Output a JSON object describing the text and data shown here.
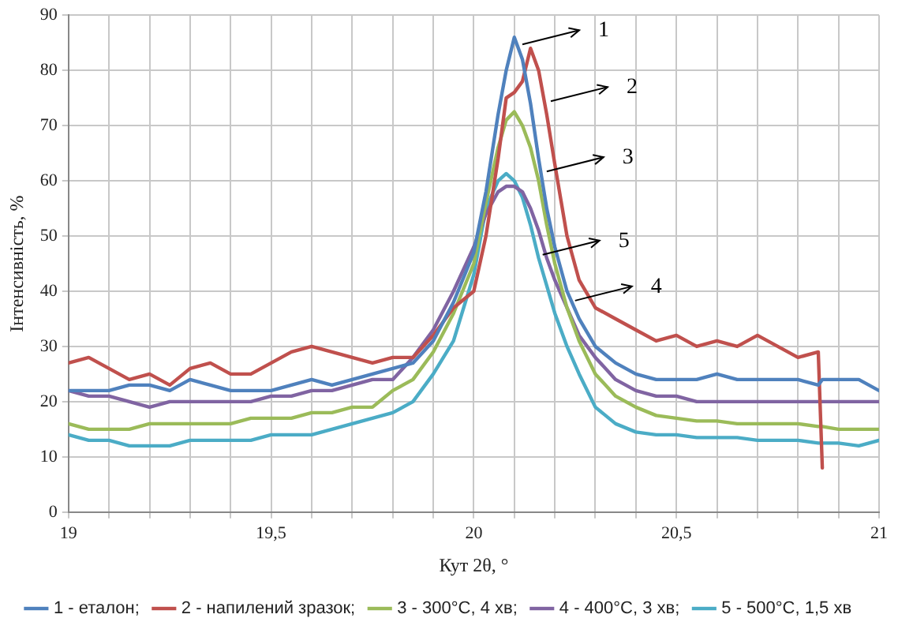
{
  "chart_data": {
    "type": "line",
    "xlabel": "Кут 2θ, °",
    "ylabel": "Інтенсивність, %",
    "x": [
      19,
      19.05,
      19.1,
      19.15,
      19.2,
      19.25,
      19.3,
      19.35,
      19.4,
      19.45,
      19.5,
      19.55,
      19.6,
      19.65,
      19.7,
      19.75,
      19.8,
      19.85,
      19.9,
      19.95,
      20,
      20.03,
      20.06,
      20.08,
      20.1,
      20.12,
      20.14,
      20.16,
      20.18,
      20.2,
      20.23,
      20.26,
      20.3,
      20.35,
      20.4,
      20.45,
      20.5,
      20.55,
      20.6,
      20.65,
      20.7,
      20.75,
      20.8,
      20.85,
      20.86,
      20.9,
      20.95,
      21
    ],
    "series": [
      {
        "name": "1 - еталон;",
        "color": "#4f81bd",
        "values": [
          22,
          22,
          22,
          23,
          23,
          22,
          24,
          23,
          22,
          22,
          22,
          23,
          24,
          23,
          24,
          25,
          26,
          27,
          31,
          38,
          47,
          58,
          72,
          80,
          86,
          82,
          74,
          64,
          55,
          48,
          40,
          35,
          30,
          27,
          25,
          24,
          24,
          24,
          25,
          24,
          24,
          24,
          24,
          23,
          24,
          24,
          24,
          22
        ]
      },
      {
        "name": "2 - напилений зразок;",
        "color": "#c0504d",
        "values": [
          27,
          28,
          26,
          24,
          25,
          23,
          26,
          27,
          25,
          25,
          27,
          29,
          30,
          29,
          28,
          27,
          28,
          28,
          32,
          37,
          40,
          50,
          64,
          75,
          76,
          78,
          84,
          80,
          72,
          63,
          50,
          42,
          37,
          35,
          33,
          31,
          32,
          30,
          31,
          30,
          32,
          30,
          28,
          29,
          8,
          null,
          null,
          null
        ]
      },
      {
        "name": "3 - 300°C, 4 хв;",
        "color": "#9bbb59",
        "values": [
          16,
          15,
          15,
          15,
          16,
          16,
          16,
          16,
          16,
          17,
          17,
          17,
          18,
          18,
          19,
          19,
          22,
          24,
          29,
          36,
          45,
          56,
          66,
          71,
          72.5,
          70,
          66,
          60,
          52,
          45,
          37,
          31,
          25,
          21,
          19,
          17.5,
          17,
          16.5,
          16.5,
          16,
          16,
          16,
          16,
          15.5,
          15.5,
          15,
          15,
          15
        ]
      },
      {
        "name": "4 - 400°C, 3 хв;",
        "color": "#8064a2",
        "values": [
          22,
          21,
          21,
          20,
          19,
          20,
          20,
          20,
          20,
          20,
          21,
          21,
          22,
          22,
          23,
          24,
          24,
          28,
          33,
          40,
          48,
          54,
          58,
          59,
          59,
          58,
          55,
          51,
          46,
          42,
          37,
          32,
          28,
          24,
          22,
          21,
          21,
          20,
          20,
          20,
          20,
          20,
          20,
          20,
          20,
          20,
          20,
          20
        ]
      },
      {
        "name": "5 - 500°C, 1,5 хв",
        "color": "#4bacc6",
        "values": [
          14,
          13,
          13,
          12,
          12,
          12,
          13,
          13,
          13,
          13,
          14,
          14,
          14,
          15,
          16,
          17,
          18,
          20,
          25,
          31,
          43,
          55,
          60,
          61.3,
          60,
          57,
          52,
          46,
          41,
          36,
          30,
          25,
          19,
          16,
          14.5,
          14,
          14,
          13.5,
          13.5,
          13.5,
          13,
          13,
          13,
          12.5,
          12.5,
          12.5,
          12,
          13
        ]
      }
    ],
    "xlim": [
      19,
      21
    ],
    "xticks": [
      19,
      {
        "value": 19.1,
        "label": null
      },
      {
        "value": 19.2,
        "label": null
      },
      {
        "value": 19.3,
        "label": null
      },
      {
        "value": 19.4,
        "label": null
      },
      {
        "value": 19.5,
        "label": "19,5"
      },
      {
        "value": 19.6,
        "label": null
      },
      {
        "value": 19.7,
        "label": null
      },
      {
        "value": 19.8,
        "label": null
      },
      {
        "value": 19.9,
        "label": null
      },
      20,
      {
        "value": 20.1,
        "label": null
      },
      {
        "value": 20.2,
        "label": null
      },
      {
        "value": 20.3,
        "label": null
      },
      {
        "value": 20.4,
        "label": null
      },
      {
        "value": 20.5,
        "label": "20,5"
      },
      {
        "value": 20.6,
        "label": null
      },
      {
        "value": 20.7,
        "label": null
      },
      {
        "value": 20.8,
        "label": null
      },
      {
        "value": 20.9,
        "label": null
      },
      21
    ],
    "ylim": [
      0,
      90
    ],
    "yticks": [
      0,
      10,
      20,
      30,
      40,
      50,
      60,
      70,
      80,
      90
    ],
    "annotations": [
      {
        "text": "1",
        "x": 20.12,
        "y": 84.7
      },
      {
        "text": "2",
        "x": 20.19,
        "y": 74.4
      },
      {
        "text": "3",
        "x": 20.18,
        "y": 61.7
      },
      {
        "text": "5",
        "x": 20.17,
        "y": 46.6
      },
      {
        "text": "4",
        "x": 20.25,
        "y": 38.3
      }
    ],
    "grid": true,
    "legend": "bottom",
    "marker": "none",
    "line_style": "solid"
  }
}
